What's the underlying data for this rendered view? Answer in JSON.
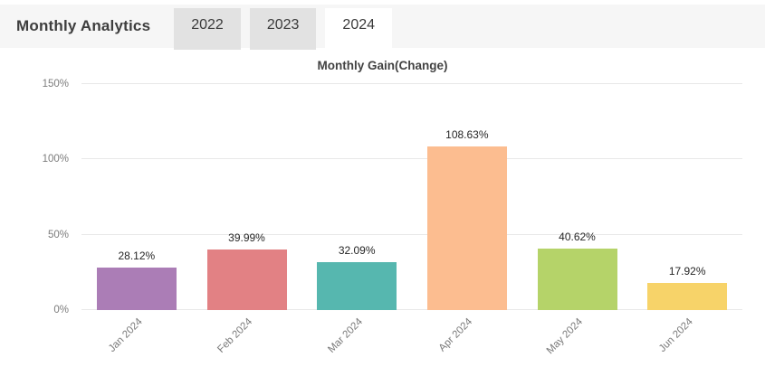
{
  "header": {
    "title": "Monthly Analytics",
    "tabs": [
      {
        "label": "2022",
        "active": false
      },
      {
        "label": "2023",
        "active": false
      },
      {
        "label": "2024",
        "active": true
      }
    ]
  },
  "chart_data": {
    "type": "bar",
    "title": "Monthly Gain(Change)",
    "categories": [
      "Jan 2024",
      "Feb 2024",
      "Mar 2024",
      "Apr 2024",
      "May 2024",
      "Jun 2024"
    ],
    "values": [
      28.12,
      39.99,
      32.09,
      108.63,
      40.62,
      17.92
    ],
    "value_labels": [
      "28.12%",
      "39.99%",
      "32.09%",
      "108.63%",
      "40.62%",
      "17.92%"
    ],
    "bar_colors": [
      "#ab7db6",
      "#e28184",
      "#56b7af",
      "#fcbd90",
      "#b5d369",
      "#f7d369"
    ],
    "xlabel": "",
    "ylabel": "",
    "ylim": [
      0,
      150
    ],
    "yticks": [
      0,
      50,
      100,
      150
    ],
    "ytick_labels": [
      "0%",
      "50%",
      "100%",
      "150%"
    ],
    "grid": true,
    "legend": "none",
    "colors": {
      "header_bg": "#f6f6f6",
      "tab_inactive_bg": "#e2e2e2",
      "tab_active_bg": "#ffffff",
      "gridline": "#e8e8e8",
      "tick_text": "#7c7c7c",
      "value_text": "#262626"
    }
  }
}
